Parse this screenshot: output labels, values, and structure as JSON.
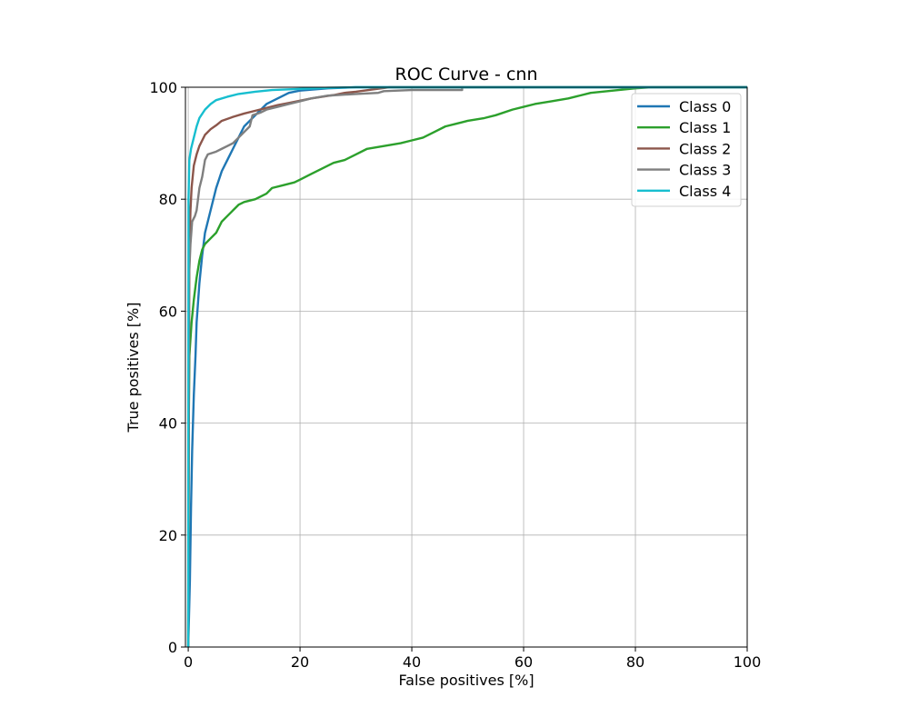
{
  "chart_data": {
    "type": "line",
    "title": "ROC Curve - cnn",
    "xlabel": "False positives [%]",
    "ylabel": "True positives [%]",
    "xlim": [
      -0.5,
      100
    ],
    "ylim": [
      0,
      100
    ],
    "xticks": [
      0,
      20,
      40,
      60,
      80,
      100
    ],
    "yticks": [
      0,
      20,
      40,
      60,
      80,
      100
    ],
    "grid": true,
    "legend_position": "top-right",
    "series": [
      {
        "name": "Class 0",
        "color": "#1f77b4",
        "points": [
          [
            0,
            0
          ],
          [
            0.3,
            12
          ],
          [
            0.5,
            25
          ],
          [
            0.7,
            35
          ],
          [
            1.0,
            45
          ],
          [
            1.3,
            52
          ],
          [
            1.5,
            58
          ],
          [
            2,
            65
          ],
          [
            2.5,
            70
          ],
          [
            3,
            74
          ],
          [
            4,
            78
          ],
          [
            5,
            82
          ],
          [
            6,
            85
          ],
          [
            7,
            87
          ],
          [
            8,
            89
          ],
          [
            9,
            91
          ],
          [
            10,
            93
          ],
          [
            11,
            94
          ],
          [
            12,
            95
          ],
          [
            13,
            96
          ],
          [
            14,
            97
          ],
          [
            16,
            98
          ],
          [
            18,
            99
          ],
          [
            20,
            99.4
          ],
          [
            25,
            99.8
          ],
          [
            30,
            100
          ],
          [
            100,
            100
          ]
        ]
      },
      {
        "name": "Class 1",
        "color": "#2ca02c",
        "points": [
          [
            0,
            0
          ],
          [
            0.1,
            40
          ],
          [
            0.2,
            52
          ],
          [
            0.6,
            58
          ],
          [
            1,
            62
          ],
          [
            1.5,
            66
          ],
          [
            2,
            69
          ],
          [
            2.5,
            71
          ],
          [
            3,
            72
          ],
          [
            4,
            73
          ],
          [
            5,
            74
          ],
          [
            6,
            76
          ],
          [
            7,
            77
          ],
          [
            8,
            78
          ],
          [
            9,
            79
          ],
          [
            10,
            79.5
          ],
          [
            12,
            80
          ],
          [
            14,
            81
          ],
          [
            15,
            82
          ],
          [
            17,
            82.5
          ],
          [
            19,
            83
          ],
          [
            20,
            83.5
          ],
          [
            22,
            84.5
          ],
          [
            24,
            85.5
          ],
          [
            26,
            86.5
          ],
          [
            28,
            87
          ],
          [
            30,
            88
          ],
          [
            32,
            89
          ],
          [
            35,
            89.5
          ],
          [
            38,
            90
          ],
          [
            40,
            90.5
          ],
          [
            42,
            91
          ],
          [
            44,
            92
          ],
          [
            46,
            93
          ],
          [
            48,
            93.5
          ],
          [
            50,
            94
          ],
          [
            53,
            94.5
          ],
          [
            55,
            95
          ],
          [
            58,
            96
          ],
          [
            60,
            96.5
          ],
          [
            62,
            97
          ],
          [
            65,
            97.5
          ],
          [
            68,
            98
          ],
          [
            70,
            98.5
          ],
          [
            72,
            99
          ],
          [
            75,
            99.3
          ],
          [
            78,
            99.6
          ],
          [
            80,
            99.8
          ],
          [
            83,
            100
          ],
          [
            100,
            100
          ]
        ]
      },
      {
        "name": "Class 2",
        "color": "#8c564b",
        "points": [
          [
            0,
            0
          ],
          [
            0.2,
            70
          ],
          [
            0.4,
            78
          ],
          [
            0.6,
            82
          ],
          [
            0.8,
            84
          ],
          [
            1,
            86
          ],
          [
            1.5,
            88
          ],
          [
            2,
            89.5
          ],
          [
            2.5,
            90.5
          ],
          [
            3,
            91.5
          ],
          [
            4,
            92.5
          ],
          [
            5,
            93.2
          ],
          [
            6,
            94
          ],
          [
            8,
            94.7
          ],
          [
            10,
            95.3
          ],
          [
            12,
            95.8
          ],
          [
            14,
            96.3
          ],
          [
            16,
            96.8
          ],
          [
            18,
            97.2
          ],
          [
            20,
            97.6
          ],
          [
            22,
            98
          ],
          [
            24,
            98.3
          ],
          [
            26,
            98.6
          ],
          [
            28,
            99
          ],
          [
            30,
            99.2
          ],
          [
            33,
            99.6
          ],
          [
            36,
            100
          ],
          [
            100,
            100
          ]
        ]
      },
      {
        "name": "Class 3",
        "color": "#7f7f7f",
        "points": [
          [
            0,
            0
          ],
          [
            0.1,
            65
          ],
          [
            0.4,
            72
          ],
          [
            0.7,
            76
          ],
          [
            1.2,
            77
          ],
          [
            1.5,
            78
          ],
          [
            2,
            82
          ],
          [
            2.5,
            84
          ],
          [
            3,
            87
          ],
          [
            3.5,
            88
          ],
          [
            5,
            88.5
          ],
          [
            6,
            89
          ],
          [
            7,
            89.5
          ],
          [
            8,
            90
          ],
          [
            9,
            91
          ],
          [
            10,
            92
          ],
          [
            11,
            93
          ],
          [
            11.5,
            95
          ],
          [
            13,
            95.5
          ],
          [
            14,
            96
          ],
          [
            16,
            96.5
          ],
          [
            18,
            97
          ],
          [
            20,
            97.5
          ],
          [
            22,
            98
          ],
          [
            25,
            98.5
          ],
          [
            30,
            98.8
          ],
          [
            34,
            99
          ],
          [
            35,
            99.3
          ],
          [
            40,
            99.5
          ],
          [
            45,
            99.5
          ],
          [
            49,
            99.5
          ],
          [
            49,
            100
          ],
          [
            100,
            100
          ]
        ]
      },
      {
        "name": "Class 4",
        "color": "#17becf",
        "points": [
          [
            0,
            0
          ],
          [
            0.05,
            80
          ],
          [
            0.2,
            87
          ],
          [
            0.5,
            89
          ],
          [
            1,
            91
          ],
          [
            1.5,
            93
          ],
          [
            2,
            94.5
          ],
          [
            3,
            96
          ],
          [
            4,
            97
          ],
          [
            5,
            97.7
          ],
          [
            7,
            98.3
          ],
          [
            9,
            98.8
          ],
          [
            12,
            99.2
          ],
          [
            15,
            99.5
          ],
          [
            20,
            99.7
          ],
          [
            25,
            99.9
          ],
          [
            30,
            100
          ],
          [
            100,
            100
          ]
        ]
      }
    ]
  }
}
